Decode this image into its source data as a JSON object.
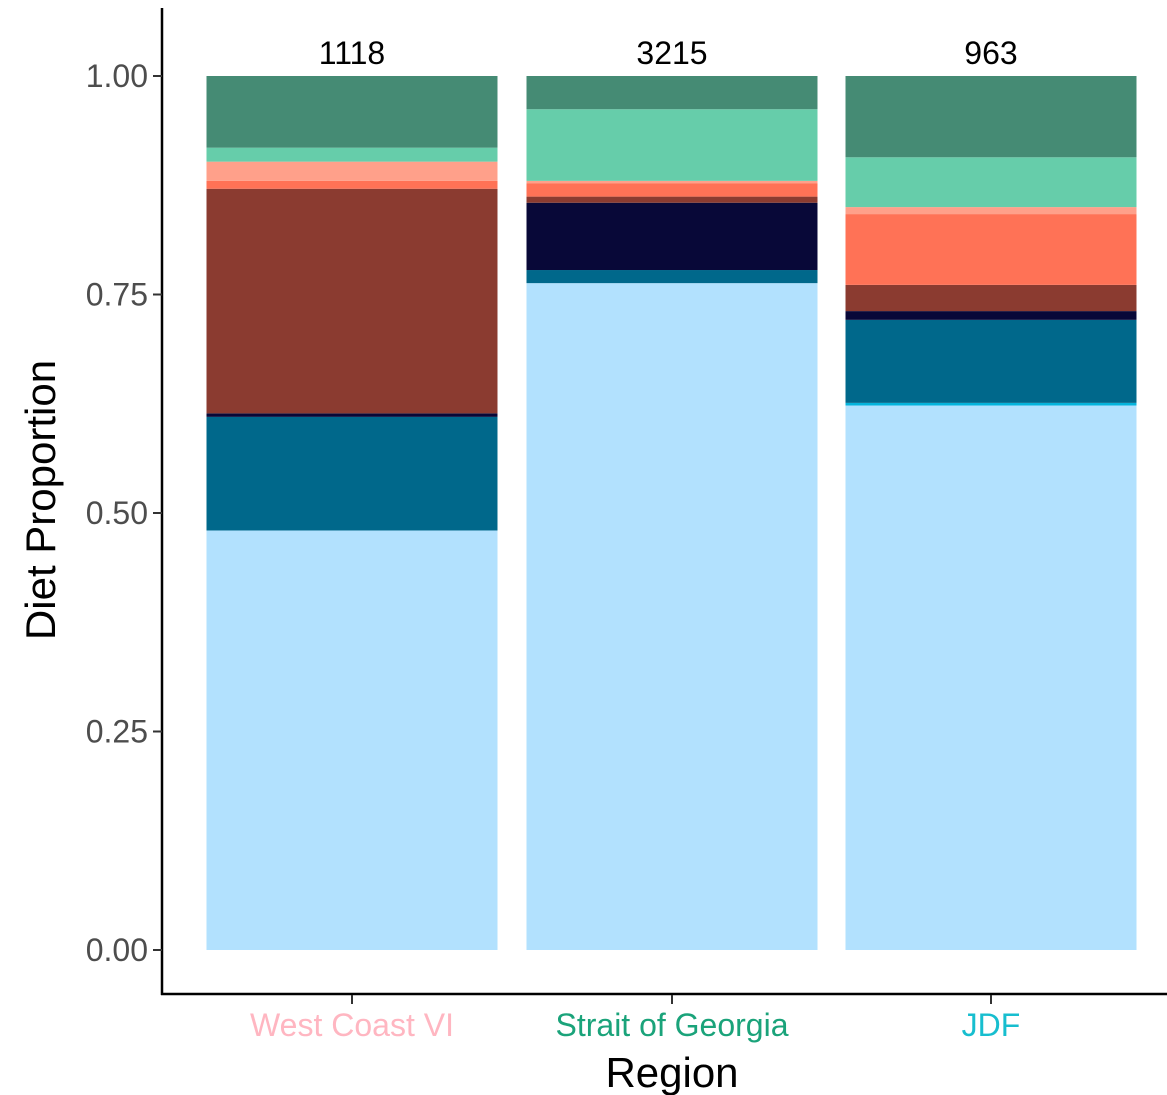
{
  "chart_data": {
    "type": "bar",
    "stacked": true,
    "title": "",
    "xlabel": "Region",
    "ylabel": "Diet Proportion",
    "ylim": [
      0,
      1
    ],
    "y_ticks": [
      "0.00",
      "0.25",
      "0.50",
      "0.75",
      "1.00"
    ],
    "categories": [
      "West Coast VI",
      "Strait of Georgia",
      "JDF"
    ],
    "category_colors": [
      "#ffb6c1",
      "#1aa37a",
      "#17becf"
    ],
    "top_labels": [
      "1118",
      "3215",
      "963"
    ],
    "grid": false,
    "legend": "none",
    "series": [
      {
        "color": "#b2e1fe",
        "values": [
          0.48,
          0.763,
          0.623
        ]
      },
      {
        "color": "#04b4dc",
        "values": [
          0.0,
          0.0,
          0.003
        ]
      },
      {
        "color": "#00688b",
        "values": [
          0.13,
          0.015,
          0.095
        ]
      },
      {
        "color": "#080838",
        "values": [
          0.004,
          0.077,
          0.01
        ]
      },
      {
        "color": "#8b3b30",
        "values": [
          0.257,
          0.007,
          0.03
        ]
      },
      {
        "color": "#ff7256",
        "values": [
          0.009,
          0.015,
          0.081
        ]
      },
      {
        "color": "#ffa08a",
        "values": [
          0.022,
          0.003,
          0.008
        ]
      },
      {
        "color": "#66cdaa",
        "values": [
          0.016,
          0.082,
          0.057
        ]
      },
      {
        "color": "#458b74",
        "values": [
          0.082,
          0.038,
          0.093
        ]
      }
    ]
  }
}
